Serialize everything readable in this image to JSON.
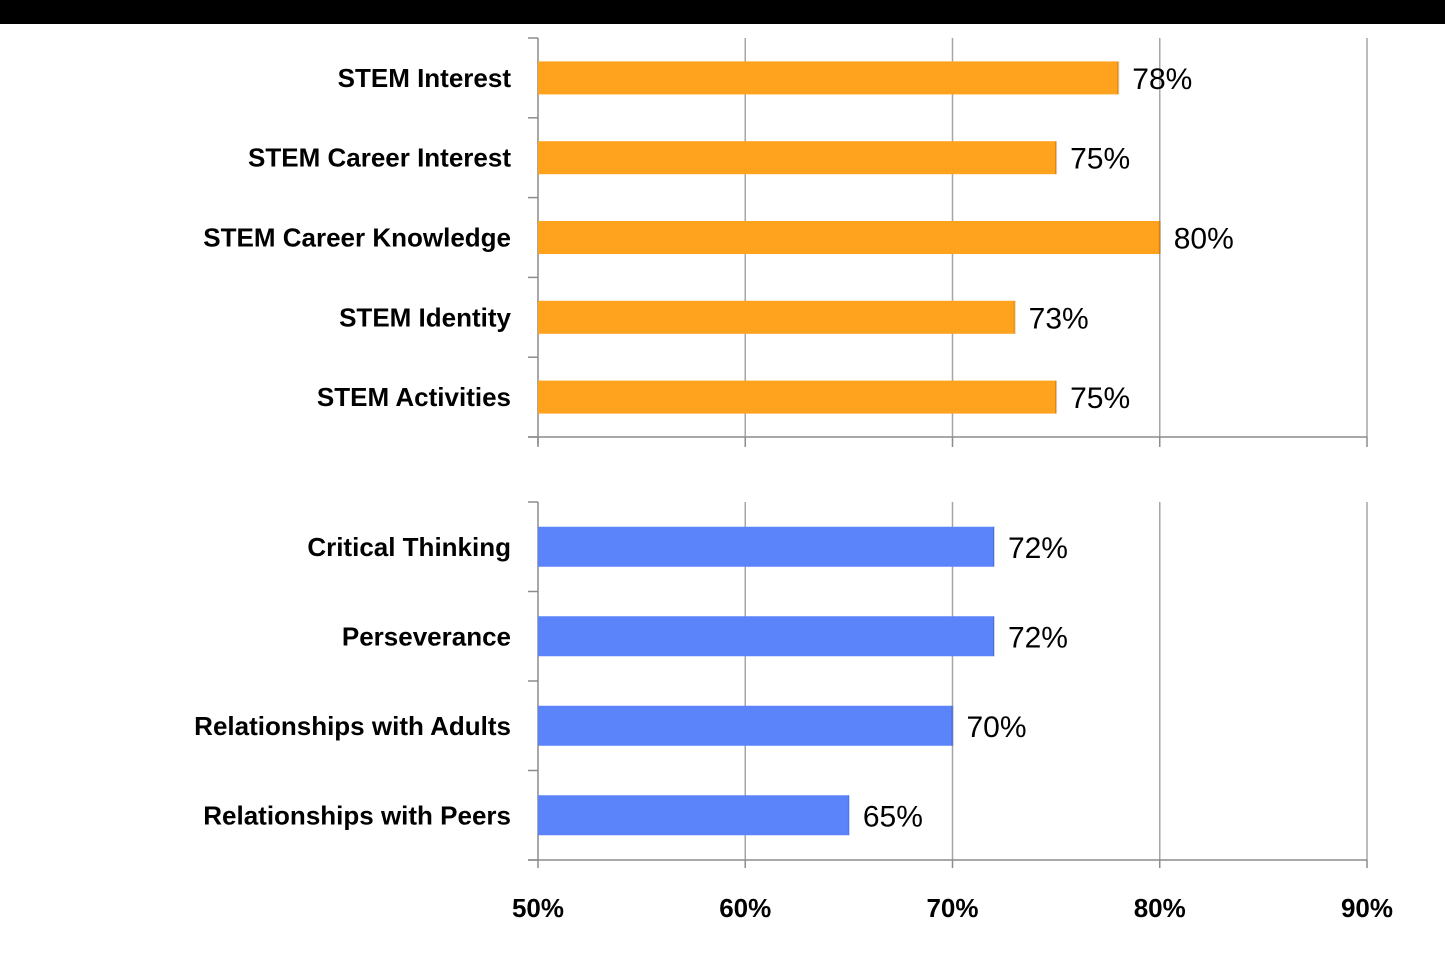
{
  "chart_data": [
    {
      "type": "bar",
      "orientation": "horizontal",
      "categories": [
        "STEM Interest",
        "STEM Career Interest",
        "STEM Career Knowledge",
        "STEM Identity",
        "STEM Activities"
      ],
      "values": [
        78,
        75,
        80,
        73,
        75
      ],
      "value_labels": [
        "78%",
        "75%",
        "80%",
        "73%",
        "75%"
      ],
      "color": "#FFA31F",
      "xlim": [
        50,
        90
      ],
      "grid": true
    },
    {
      "type": "bar",
      "orientation": "horizontal",
      "categories": [
        "Critical Thinking",
        "Perseverance",
        "Relationships with Adults",
        "Relationships with Peers"
      ],
      "values": [
        72,
        72,
        70,
        65
      ],
      "value_labels": [
        "72%",
        "72%",
        "70%",
        "65%"
      ],
      "color": "#5B84FB",
      "xlim": [
        50,
        90
      ],
      "grid": true
    }
  ],
  "x_axis": {
    "ticks": [
      50,
      60,
      70,
      80,
      90
    ],
    "tick_labels": [
      "50%",
      "60%",
      "70%",
      "80%",
      "90%"
    ]
  }
}
